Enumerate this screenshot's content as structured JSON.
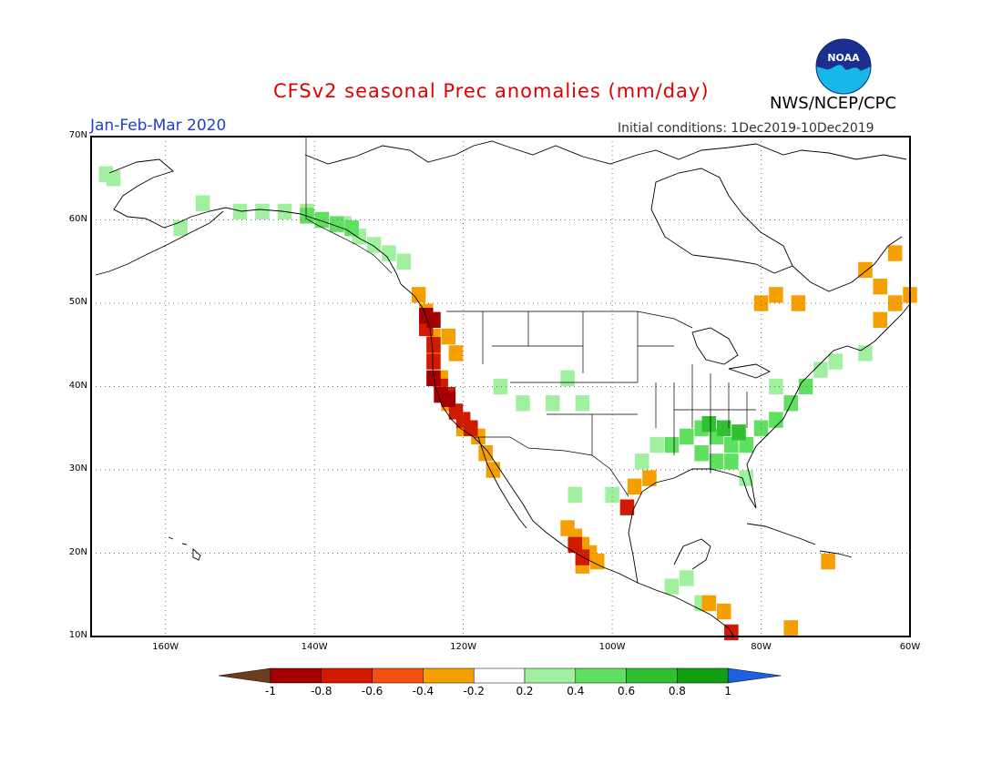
{
  "title": "CFSv2 seasonal Prec anomalies (mm/day)",
  "agency": "NWS/NCEP/CPC",
  "logo_text": "NOAA",
  "period": "Jan-Feb-Mar 2020",
  "initial_conditions": "Initial conditions: 1Dec2019-10Dec2019",
  "axes": {
    "lat_labels": [
      "70N",
      "60N",
      "50N",
      "40N",
      "30N",
      "20N",
      "10N"
    ],
    "lon_labels": [
      "160W",
      "140W",
      "120W",
      "100W",
      "80W",
      "60W"
    ]
  },
  "colorbar": {
    "labels": [
      "-1",
      "-0.8",
      "-0.6",
      "-0.4",
      "-0.2",
      "0.2",
      "0.4",
      "0.6",
      "0.8",
      "1"
    ],
    "colors": [
      "#6b3d1c",
      "#a50000",
      "#d21a00",
      "#f05010",
      "#f5a000",
      "#ffffff",
      "#a0f0a0",
      "#60e060",
      "#30c030",
      "#10a010",
      "#2060e0"
    ]
  },
  "map_extent": {
    "lon_min": -170,
    "lon_max": -60,
    "lat_min": 10,
    "lat_max": 70
  },
  "anomaly_regions": [
    {
      "name": "alaska-west",
      "color": "#a0f0a0",
      "cells": [
        [
          -168,
          65.5
        ],
        [
          -167,
          65
        ],
        [
          -158,
          59
        ],
        [
          -155,
          62
        ],
        [
          -150,
          61
        ],
        [
          -147,
          61
        ],
        [
          -144,
          61
        ],
        [
          -141,
          61
        ],
        [
          -139,
          60
        ],
        [
          -136,
          59.5
        ],
        [
          -134,
          58
        ],
        [
          -132,
          57
        ],
        [
          -130,
          56
        ],
        [
          -128,
          55
        ]
      ]
    },
    {
      "name": "alaska-south-coast",
      "color": "#60e060",
      "cells": [
        [
          -141,
          60.5
        ],
        [
          -139,
          60
        ],
        [
          -137,
          59.5
        ],
        [
          -135,
          59
        ]
      ]
    },
    {
      "name": "pacific-nw-dry",
      "color": "#f5a000",
      "cells": [
        [
          -126,
          51
        ],
        [
          -125,
          49
        ],
        [
          -124,
          46
        ],
        [
          -124,
          44
        ],
        [
          -123,
          41
        ],
        [
          -122,
          38
        ],
        [
          -120,
          35
        ],
        [
          -118,
          34
        ],
        [
          -117,
          32
        ],
        [
          -116,
          30
        ],
        [
          -121,
          44
        ],
        [
          -122,
          46
        ]
      ]
    },
    {
      "name": "pacific-nw-very-dry",
      "color": "#d21a00",
      "cells": [
        [
          -125,
          47
        ],
        [
          -124,
          45
        ],
        [
          -124,
          43
        ],
        [
          -123,
          40
        ],
        [
          -122,
          39
        ],
        [
          -121,
          37
        ],
        [
          -120,
          36
        ],
        [
          -119,
          35
        ]
      ]
    },
    {
      "name": "pacific-nw-extreme",
      "color": "#a50000",
      "cells": [
        [
          -125,
          48.5
        ],
        [
          -124,
          48
        ],
        [
          -124,
          41
        ],
        [
          -123,
          39
        ],
        [
          -122,
          38.5
        ]
      ]
    },
    {
      "name": "mexico-west-dry",
      "color": "#f5a000",
      "cells": [
        [
          -106,
          23
        ],
        [
          -105,
          22
        ],
        [
          -104,
          21
        ],
        [
          -103,
          20
        ],
        [
          -102,
          19
        ],
        [
          -104,
          18.5
        ]
      ]
    },
    {
      "name": "mexico-west-very-dry",
      "color": "#d21a00",
      "cells": [
        [
          -105,
          21
        ],
        [
          -104,
          19.5
        ]
      ]
    },
    {
      "name": "southeast-wet",
      "color": "#60e060",
      "cells": [
        [
          -90,
          34
        ],
        [
          -88,
          35
        ],
        [
          -86,
          34
        ],
        [
          -84,
          33
        ],
        [
          -82,
          33
        ],
        [
          -80,
          35
        ],
        [
          -78,
          36
        ],
        [
          -76,
          38
        ],
        [
          -74,
          40
        ],
        [
          -88,
          32
        ],
        [
          -86,
          31
        ],
        [
          -84,
          31
        ],
        [
          -92,
          33
        ]
      ]
    },
    {
      "name": "southeast-wet-strong",
      "color": "#30c030",
      "cells": [
        [
          -87,
          35.5
        ],
        [
          -85,
          35
        ],
        [
          -83,
          34.5
        ]
      ]
    },
    {
      "name": "southeast-wet-light",
      "color": "#a0f0a0",
      "cells": [
        [
          -94,
          33
        ],
        [
          -96,
          31
        ],
        [
          -82,
          29
        ],
        [
          -78,
          40
        ],
        [
          -72,
          42
        ],
        [
          -70,
          43
        ],
        [
          -66,
          44
        ],
        [
          -105,
          27
        ],
        [
          -100,
          27
        ],
        [
          -112,
          38
        ],
        [
          -108,
          38
        ],
        [
          -106,
          41
        ],
        [
          -104,
          38
        ],
        [
          -115,
          40
        ],
        [
          -92,
          16
        ],
        [
          -90,
          17
        ],
        [
          -88,
          14
        ]
      ]
    },
    {
      "name": "east-canada-dry",
      "color": "#f5a000",
      "cells": [
        [
          -66,
          54
        ],
        [
          -64,
          52
        ],
        [
          -62,
          50
        ],
        [
          -64,
          48
        ],
        [
          -60,
          51
        ],
        [
          -62,
          56
        ],
        [
          -80,
          50
        ],
        [
          -78,
          51
        ],
        [
          -75,
          50
        ]
      ]
    },
    {
      "name": "gulf-coast-dry",
      "color": "#f5a000",
      "cells": [
        [
          -97,
          28
        ],
        [
          -95,
          29
        ],
        [
          -87,
          14
        ],
        [
          -85,
          13
        ],
        [
          -76,
          11
        ],
        [
          -71,
          19
        ]
      ]
    },
    {
      "name": "gulf-coast-very-dry",
      "color": "#d21a00",
      "cells": [
        [
          -98,
          25.5
        ],
        [
          -84,
          10.5
        ]
      ]
    }
  ]
}
